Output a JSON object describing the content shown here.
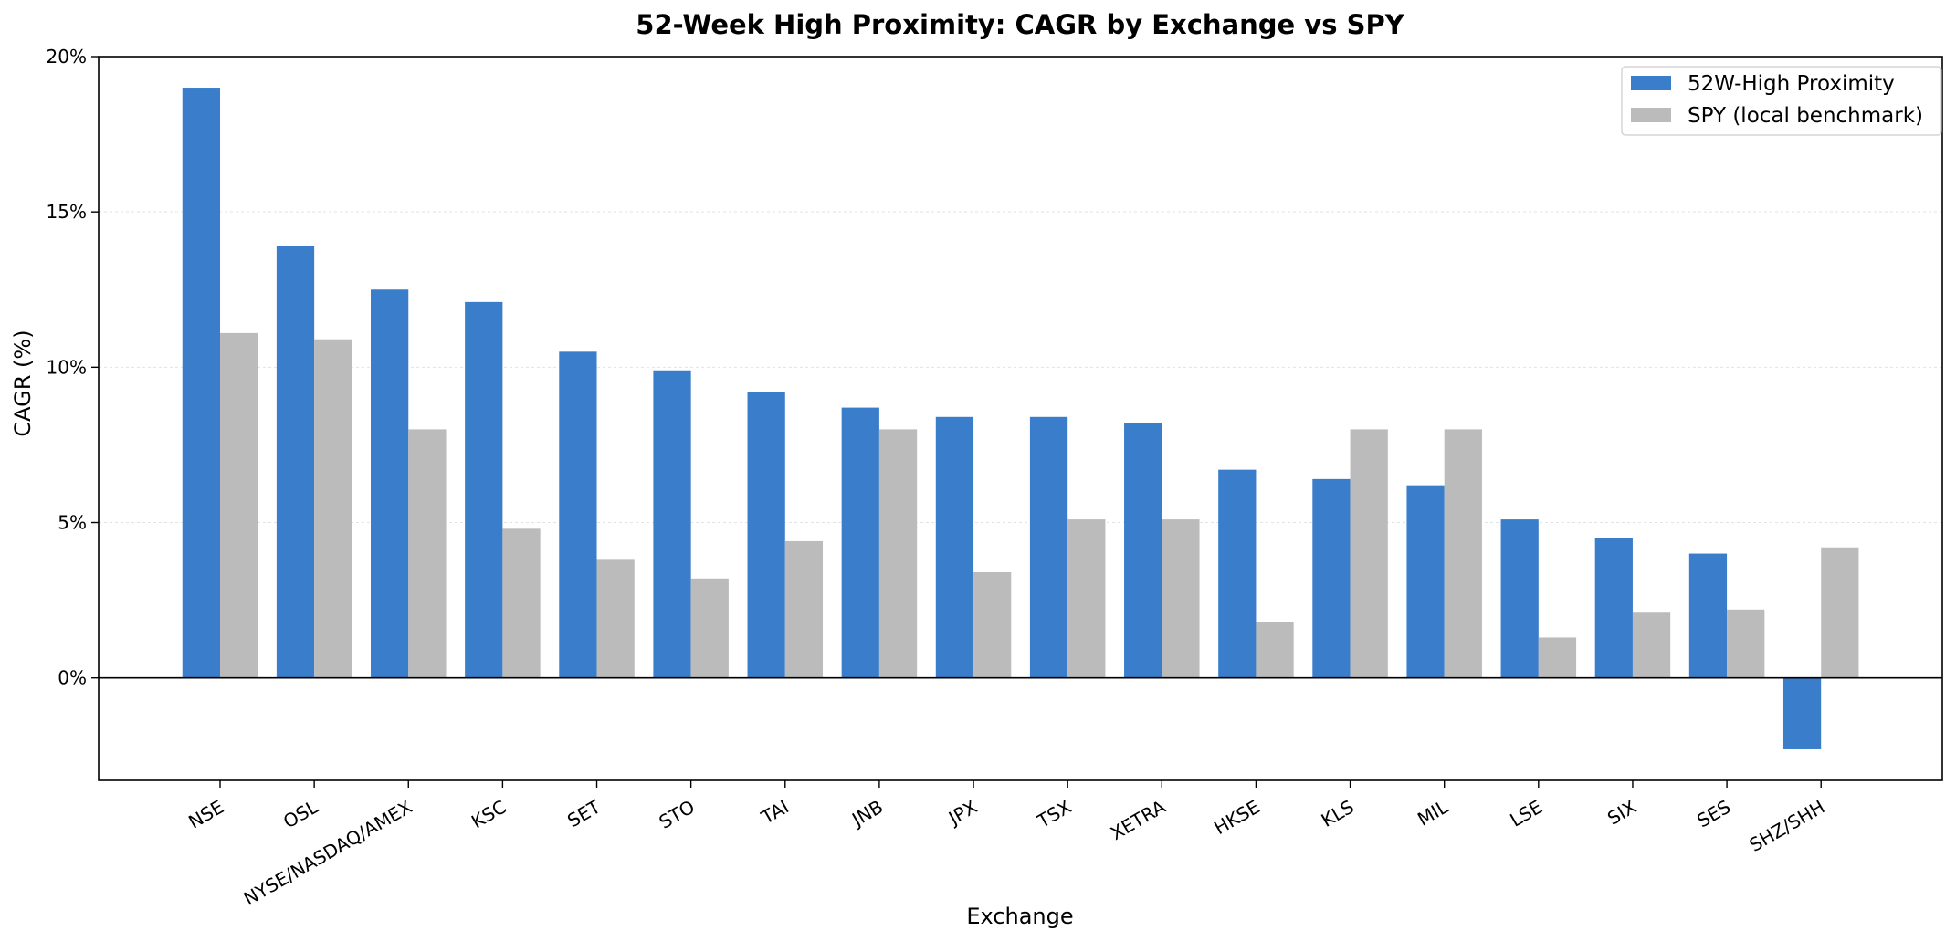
{
  "chart_data": {
    "type": "bar",
    "title": "52-Week High Proximity: CAGR by Exchange vs SPY",
    "xlabel": "Exchange",
    "ylabel": "CAGR (%)",
    "ylim": [
      -3.3,
      20
    ],
    "yticks": [
      0,
      5,
      10,
      15,
      20
    ],
    "ytick_labels": [
      "0%",
      "5%",
      "10%",
      "15%",
      "20%"
    ],
    "grid": true,
    "legend_position": "top-right",
    "categories": [
      "NSE",
      "OSL",
      "NYSE/NASDAQ/AMEX",
      "KSC",
      "SET",
      "STO",
      "TAI",
      "JNB",
      "JPX",
      "TSX",
      "XETRA",
      "HKSE",
      "KLS",
      "MIL",
      "LSE",
      "SIX",
      "SES",
      "SHZ/SHH"
    ],
    "series": [
      {
        "name": "52W-High Proximity",
        "color": "#3a7dca",
        "values": [
          19.0,
          13.9,
          12.5,
          12.1,
          10.5,
          9.9,
          9.2,
          8.7,
          8.4,
          8.4,
          8.2,
          6.7,
          6.4,
          6.2,
          5.1,
          4.5,
          4.0,
          -2.3
        ]
      },
      {
        "name": "SPY (local benchmark)",
        "color": "#bbbbbb",
        "values": [
          11.1,
          10.9,
          8.0,
          4.8,
          3.8,
          3.2,
          4.4,
          8.0,
          3.4,
          5.1,
          5.1,
          1.8,
          8.0,
          8.0,
          1.3,
          2.1,
          2.2,
          4.2
        ]
      }
    ]
  }
}
